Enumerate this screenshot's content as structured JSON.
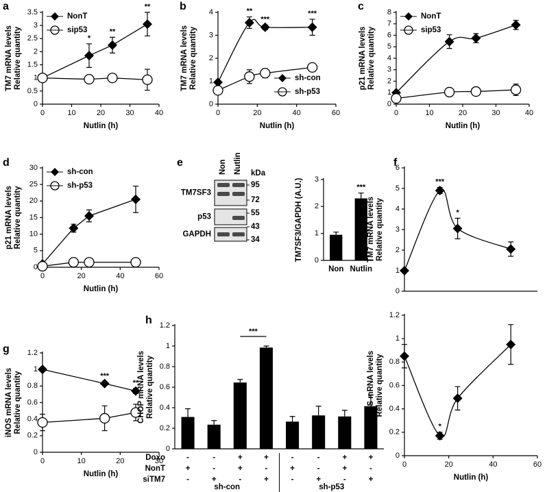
{
  "chart_data": [
    {
      "type": "line",
      "panel": "a",
      "ylabel": [
        "TM7 mRNA levels",
        "Relative quantity"
      ],
      "xlabel": "Nutlin (h)",
      "x": [
        0,
        16,
        24,
        36
      ],
      "xlim": [
        0,
        40
      ],
      "xticks": [
        0,
        10,
        20,
        30,
        40
      ],
      "ylim": [
        0,
        3.5
      ],
      "yticks": [
        0,
        0.5,
        1,
        1.5,
        2,
        2.5,
        3,
        3.5
      ],
      "legend": "upper left",
      "curve": "straight",
      "series": [
        {
          "name": "NonT",
          "color": "#000000",
          "marker": "diamond",
          "values": [
            1,
            1.85,
            2.25,
            3.05
          ],
          "errors": [
            0.05,
            0.45,
            0.3,
            0.45
          ],
          "significance": [
            null,
            "*",
            "**",
            "**"
          ]
        },
        {
          "name": "sip53",
          "color": "#000000",
          "marker": "circle-open",
          "values": [
            1,
            0.95,
            1.0,
            0.93
          ],
          "errors": [
            0.05,
            0.15,
            0.12,
            0.4
          ]
        }
      ]
    },
    {
      "type": "line",
      "panel": "b",
      "ylabel": [
        "TM7 mRNA levels",
        "Relative quantity"
      ],
      "xlabel": "Nutlin (h)",
      "x": [
        0,
        16,
        24,
        48
      ],
      "xlim": [
        0,
        60
      ],
      "xticks": [
        0,
        20,
        40,
        60
      ],
      "ylim": [
        0,
        4
      ],
      "yticks": [
        0,
        1,
        2,
        3,
        4
      ],
      "legend": "lower right",
      "curve": "smooth",
      "series": [
        {
          "name": "sh-con",
          "color": "#000000",
          "marker": "diamond",
          "values": [
            0.95,
            3.55,
            3.35,
            3.35
          ],
          "errors": [
            0.05,
            0.25,
            0.1,
            0.35
          ],
          "significance": [
            null,
            "**",
            "***",
            "***"
          ]
        },
        {
          "name": "sh-p53",
          "color": "#000000",
          "marker": "circle-open",
          "values": [
            0.6,
            1.2,
            1.35,
            1.6
          ],
          "errors": [
            0.1,
            0.3,
            0.2,
            0.05
          ]
        }
      ]
    },
    {
      "type": "line",
      "panel": "c",
      "ylabel": [
        "p21 mRNA levels",
        "Relative quantity"
      ],
      "xlabel": "Nutlin (h)",
      "x": [
        0,
        16,
        24,
        36
      ],
      "xlim": [
        0,
        40
      ],
      "xticks": [
        0,
        10,
        20,
        30,
        40
      ],
      "ylim": [
        0,
        8
      ],
      "yticks": [
        0,
        1,
        2,
        3,
        4,
        5,
        6,
        7,
        8
      ],
      "legend": "upper left",
      "curve": "smooth",
      "series": [
        {
          "name": "NonT",
          "color": "#000000",
          "marker": "diamond",
          "values": [
            1,
            5.45,
            5.75,
            6.9
          ],
          "errors": [
            0.1,
            0.6,
            0.4,
            0.4
          ]
        },
        {
          "name": "sip53",
          "color": "#000000",
          "marker": "circle-open",
          "values": [
            0.5,
            1.05,
            1.1,
            1.25
          ],
          "errors": [
            0.3,
            0.35,
            0.35,
            0.5
          ]
        }
      ]
    },
    {
      "type": "line",
      "panel": "d",
      "ylabel": [
        "p21 mRNA levels",
        "Relative quantity"
      ],
      "xlabel": "Nutlin (h)",
      "x": [
        0,
        16,
        24,
        48
      ],
      "xlim": [
        0,
        60
      ],
      "xticks": [
        0,
        20,
        40,
        60
      ],
      "ylim": [
        0,
        30
      ],
      "yticks": [
        0,
        5,
        10,
        15,
        20,
        25,
        30
      ],
      "legend": "upper left",
      "curve": "straight",
      "series": [
        {
          "name": "sh-con",
          "color": "#000000",
          "marker": "diamond",
          "values": [
            1,
            11.8,
            15.5,
            20.5
          ],
          "errors": [
            0.3,
            1.2,
            1.8,
            4
          ]
        },
        {
          "name": "sh-p53",
          "color": "#000000",
          "marker": "circle-open",
          "values": [
            0.3,
            1.5,
            1.5,
            1.5
          ],
          "errors": [
            0.1,
            0.2,
            0.2,
            0.2
          ]
        }
      ]
    },
    {
      "type": "bar",
      "panel": "e",
      "ylabel": [
        "TM7SF3/GAPDH (A.U.)"
      ],
      "categories": [
        "Non",
        "Nutlin"
      ],
      "values": [
        0.95,
        2.3
      ],
      "errors": [
        0.1,
        0.2
      ],
      "significance": [
        null,
        "***"
      ],
      "color": "#000000",
      "ylim": [
        0,
        3
      ],
      "yticks": [
        0,
        1,
        2,
        3
      ],
      "blot": {
        "lanes": [
          "Non",
          "Nutlin"
        ],
        "unit": "kDa",
        "proteins": [
          "TM7SF3",
          "p53",
          "GAPDH"
        ],
        "markers": [
          95,
          72,
          55,
          43,
          34
        ]
      }
    },
    {
      "type": "line",
      "panel": "f",
      "ylabel": [
        "TM7 mRNA levels",
        "Relative quantity"
      ],
      "x": [
        0,
        16,
        24,
        48
      ],
      "xlim": [
        0,
        60
      ],
      "ylim": [
        0,
        6
      ],
      "yticks": [
        0,
        1,
        2,
        3,
        4,
        5,
        6
      ],
      "curve": "smooth",
      "series": [
        {
          "color": "#000000",
          "marker": "diamond",
          "values": [
            1,
            4.9,
            3.05,
            2.05
          ],
          "errors": [
            0.05,
            0.15,
            0.5,
            0.35
          ],
          "significance": [
            null,
            "***",
            "*",
            null
          ]
        }
      ]
    },
    {
      "type": "line",
      "ylabel": [
        "iNOS mRNA levels",
        "Relative quantity"
      ],
      "xlabel": "Nutlin (h)",
      "x": [
        0,
        16,
        24,
        48
      ],
      "xlim": [
        0,
        60
      ],
      "xticks": [
        0,
        20,
        40,
        60
      ],
      "ylim": [
        0,
        1.2
      ],
      "yticks": [
        0,
        0.2,
        0.4,
        0.6,
        0.8,
        1,
        1.2
      ],
      "curve": "smooth",
      "series": [
        {
          "color": "#000000",
          "marker": "diamond",
          "values": [
            0.85,
            0.17,
            0.49,
            0.95
          ],
          "errors": [
            0.1,
            0.03,
            0.1,
            0.17
          ],
          "significance": [
            null,
            "*",
            null,
            null
          ]
        }
      ]
    },
    {
      "type": "line",
      "panel": "g",
      "ylabel": [
        "iNOS mRNA levels",
        "Relative quantity"
      ],
      "xlabel": "Nutlin (h)",
      "x": [
        0,
        16,
        24
      ],
      "xlim": [
        0,
        30
      ],
      "xticks": [
        0,
        10,
        20,
        30
      ],
      "ylim": [
        0,
        1.2
      ],
      "yticks": [
        0,
        0.2,
        0.4,
        0.6,
        0.8,
        1,
        1.2
      ],
      "curve": "straight",
      "series": [
        {
          "color": "#000000",
          "marker": "diamond",
          "values": [
            1,
            0.83,
            0.74
          ],
          "errors": [
            0.02,
            0.02,
            0.03
          ],
          "significance": [
            null,
            "***",
            "**"
          ]
        },
        {
          "color": "#000000",
          "marker": "circle-open",
          "values": [
            0.36,
            0.41,
            0.48
          ],
          "errors": [
            0.1,
            0.15,
            0.1
          ]
        }
      ]
    },
    {
      "type": "bar",
      "panel": "h",
      "ylabel": [
        "CHOP mRNA levels",
        "Relative quantity"
      ],
      "values": [
        0.31,
        0.235,
        0.645,
        0.985,
        0.265,
        0.325,
        0.315,
        0.415
      ],
      "errors": [
        0.08,
        0.04,
        0.03,
        0.015,
        0.05,
        0.09,
        0.06,
        0.11
      ],
      "significance": [
        null,
        null,
        null,
        "***",
        null,
        null,
        null,
        null
      ],
      "significance_style": "bracket",
      "color": "#000000",
      "ylim": [
        0,
        1.2
      ],
      "yticks": [
        0,
        0.2,
        0.4,
        0.6,
        0.8,
        1,
        1.2
      ],
      "table": [
        {
          "label": "Doxo",
          "cells": [
            "-",
            "-",
            "+",
            "+",
            "-",
            "-",
            "+",
            "+"
          ]
        },
        {
          "label": "NonT",
          "cells": [
            "+",
            "-",
            "+",
            "-",
            "+",
            "-",
            "+",
            "-"
          ]
        },
        {
          "label": "siTM7",
          "cells": [
            "-",
            "+",
            "-",
            "+",
            "-",
            "+",
            "-",
            "+"
          ]
        }
      ],
      "groups": [
        "sh-con",
        "sh-p53"
      ]
    }
  ]
}
